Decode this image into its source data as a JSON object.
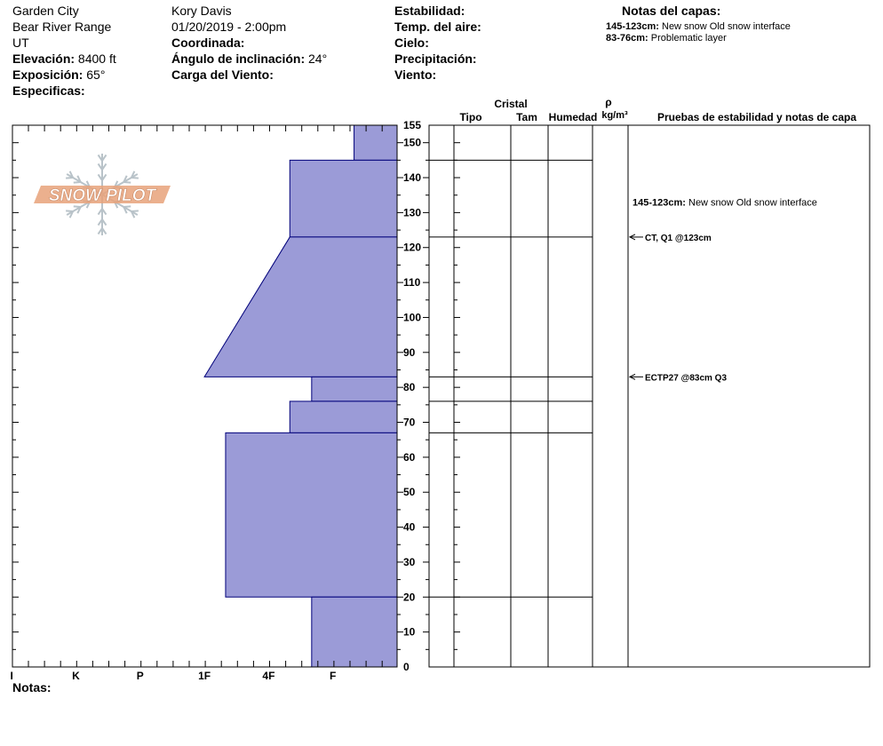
{
  "header": {
    "location": "Garden City",
    "range": "Bear River Range",
    "state": "UT",
    "elevation_label": "Elevación:",
    "elevation_value": "8400 ft",
    "aspect_label": "Exposición:",
    "aspect_value": "65°",
    "specifics_label": "Especificas:",
    "observer": "Kory Davis",
    "datetime": "01/20/2019 - 2:00pm",
    "coord_label": "Coordinada:",
    "slope_label": "Ángulo de inclinación:",
    "slope_value": "24°",
    "wind_load_label": "Carga del Viento:",
    "stability_label": "Estabilidad:",
    "air_temp_label": "Temp. del aire:",
    "sky_label": "Cielo:",
    "precip_label": "Precipitación:",
    "wind_label": "Viento:",
    "layer_notes_title": "Notas del capas:",
    "layer_notes": [
      {
        "range": "145-123cm:",
        "text": "New snow Old snow interface"
      },
      {
        "range": "83-76cm:",
        "text": "Problematic layer"
      }
    ],
    "notes_label": "Notas:"
  },
  "logo_text": "SNOW PILOT",
  "colors": {
    "hardness_fill": "#9b9bd7",
    "hardness_stroke": "#00007a",
    "grid": "#000000",
    "logo": "#e8a27a"
  },
  "columns": {
    "crystal": "Cristal",
    "type": "Tipo",
    "size": "Tam",
    "moisture": "Humedad",
    "rho": "ρ",
    "density_unit": "kg/m³",
    "tests": "Pruebas de estabilidad y notas de capa"
  },
  "chart_data": {
    "type": "bar",
    "title": "",
    "xlabel": "",
    "ylabel": "",
    "hardness_ticks": [
      "I",
      "K",
      "P",
      "1F",
      "4F",
      "F"
    ],
    "hardness_scale": {
      "I": 6,
      "K": 5,
      "P": 4,
      "1F": 3,
      "4F": 2,
      "F": 1
    },
    "ylim": [
      0,
      155
    ],
    "y_ticks": [
      0,
      10,
      20,
      30,
      40,
      50,
      60,
      70,
      80,
      90,
      100,
      110,
      120,
      130,
      140,
      150,
      155
    ],
    "layers": [
      {
        "bottom": 145,
        "top": 155,
        "hardness_bottom": 0.67,
        "hardness_top": 0.67
      },
      {
        "bottom": 123,
        "top": 145,
        "hardness_bottom": 1.67,
        "hardness_top": 1.67
      },
      {
        "bottom": 83,
        "top": 123,
        "hardness_bottom": 3.0,
        "hardness_top": 1.67
      },
      {
        "bottom": 76,
        "top": 83,
        "hardness_bottom": 1.33,
        "hardness_top": 1.33
      },
      {
        "bottom": 67,
        "top": 76,
        "hardness_bottom": 1.67,
        "hardness_top": 1.67
      },
      {
        "bottom": 20,
        "top": 67,
        "hardness_bottom": 2.67,
        "hardness_top": 2.67
      },
      {
        "bottom": 0,
        "top": 20,
        "hardness_bottom": 1.33,
        "hardness_top": 1.33
      }
    ],
    "layer_boundaries": [
      155,
      145,
      123,
      83,
      76,
      67,
      20
    ],
    "tests": [
      {
        "depth": 123,
        "label": "CT, Q1 @123cm"
      },
      {
        "depth": 83,
        "label": "ECTP27 @83cm  Q3"
      }
    ],
    "layer_comments": [
      {
        "depth": 133,
        "range": "145-123cm:",
        "text": "New snow Old snow interface"
      }
    ]
  }
}
